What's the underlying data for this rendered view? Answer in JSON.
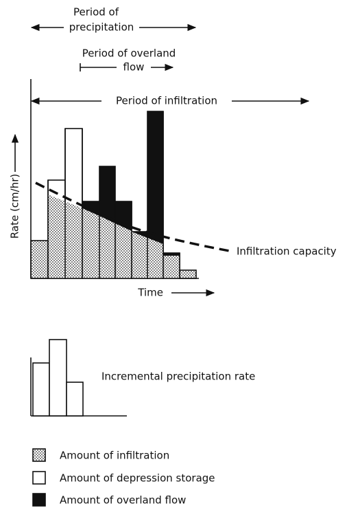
{
  "labels": {
    "precipitation_period": [
      "Period of",
      "precipitation"
    ],
    "overland_period": [
      "Period of overland",
      "flow"
    ],
    "infiltration_period": "Period of infiltration",
    "y_axis": "Rate (cm/hr)",
    "x_axis": "Time",
    "curve": "Infiltration capacity",
    "small_chart": "Incremental precipitation rate"
  },
  "legend": [
    "Amount of infiltration",
    "Amount of depression storage",
    "Amount of overland flow"
  ]
}
